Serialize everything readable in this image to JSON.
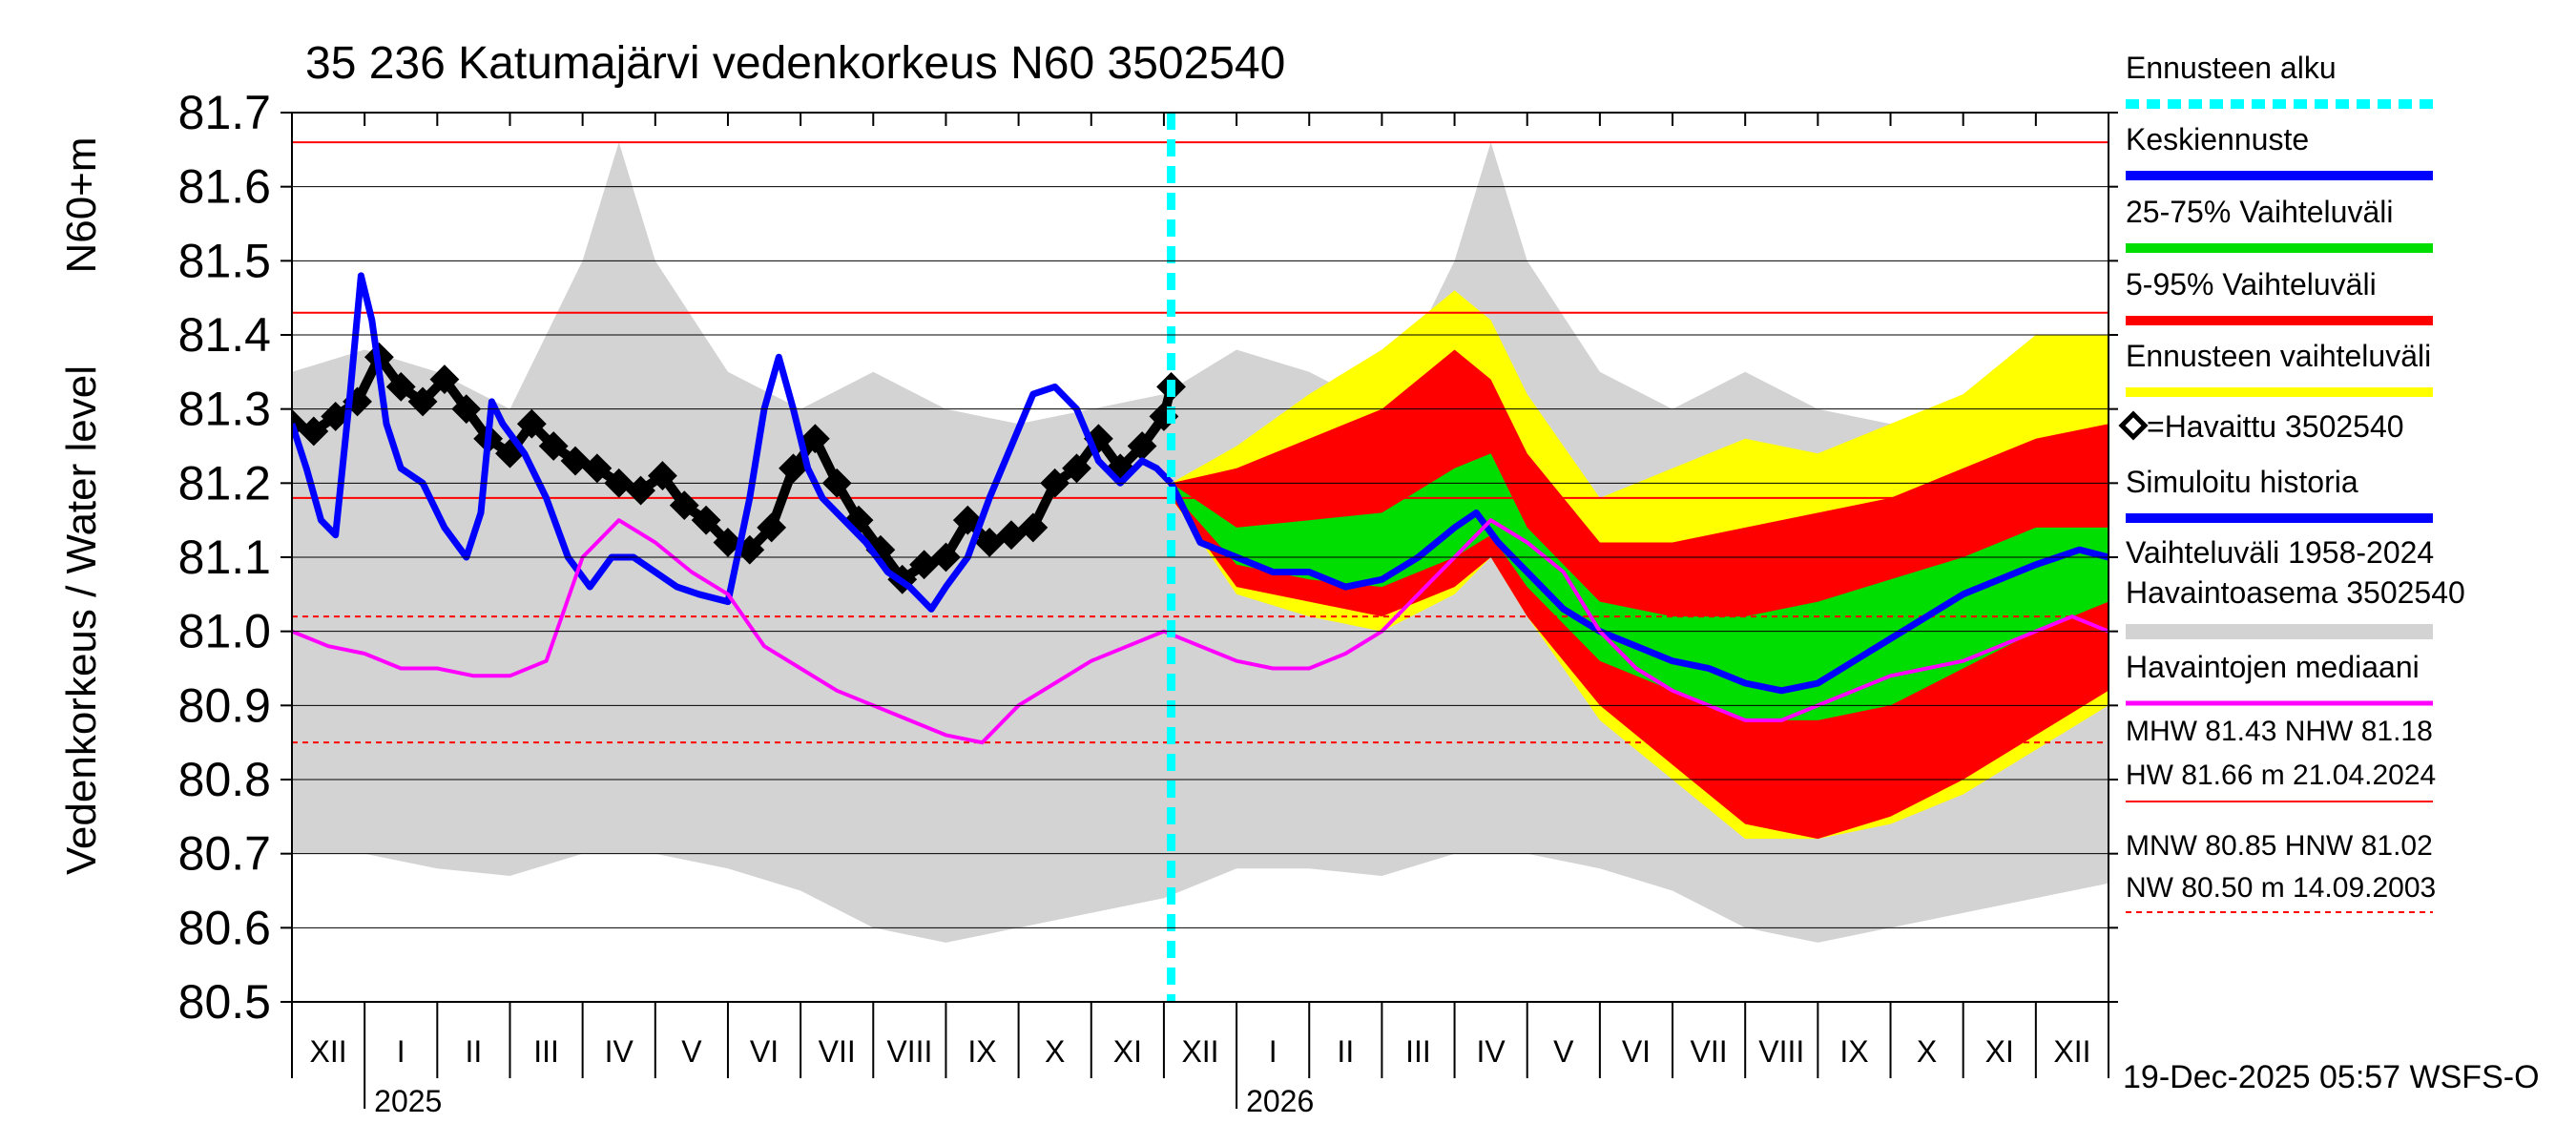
{
  "chart_data": {
    "type": "line",
    "title": "35 236 Katumajärvi vedenkorkeus N60 3502540",
    "ylabel_left": "Vedenkorkeus / Water level",
    "ylabel_right": "N60+m",
    "ylim": [
      80.5,
      81.7
    ],
    "yticks": [
      "81.7",
      "81.6",
      "81.5",
      "81.4",
      "81.3",
      "81.2",
      "81.1",
      "81.0",
      "80.9",
      "80.8",
      "80.7",
      "80.6",
      "80.5"
    ],
    "months": [
      "XII",
      "I",
      "II",
      "III",
      "IV",
      "V",
      "VI",
      "VII",
      "VIII",
      "IX",
      "X",
      "XI",
      "XII",
      "I",
      "II",
      "III",
      "IV",
      "V",
      "VI",
      "VII",
      "VIII",
      "IX",
      "X",
      "XI",
      "XII"
    ],
    "years": [
      "2025",
      "2026"
    ],
    "forecast_start_month_index": 12.1,
    "reference_lines": {
      "MHW": 81.43,
      "NHW": 81.18,
      "HW": 81.66,
      "MNW": 80.85,
      "HNW": 81.02,
      "NW": 80.5
    },
    "series": [
      {
        "name": "Havaittu 3502540",
        "color": "#000000",
        "x": [
          0,
          0.3,
          0.6,
          0.9,
          1.2,
          1.5,
          1.8,
          2.1,
          2.4,
          2.7,
          3,
          3.3,
          3.6,
          3.9,
          4.2,
          4.5,
          4.8,
          5.1,
          5.4,
          5.7,
          6,
          6.3,
          6.6,
          6.9,
          7.2,
          7.5,
          7.8,
          8.1,
          8.4,
          8.7,
          9,
          9.3,
          9.6,
          9.9,
          10.2,
          10.5,
          10.8,
          11.1,
          11.4,
          11.7,
          12,
          12.1
        ],
        "y": [
          81.28,
          81.27,
          81.29,
          81.31,
          81.37,
          81.33,
          81.31,
          81.34,
          81.3,
          81.26,
          81.24,
          81.28,
          81.25,
          81.23,
          81.22,
          81.2,
          81.19,
          81.21,
          81.17,
          81.15,
          81.12,
          81.11,
          81.14,
          81.22,
          81.26,
          81.2,
          81.15,
          81.11,
          81.07,
          81.09,
          81.1,
          81.15,
          81.12,
          81.13,
          81.14,
          81.2,
          81.22,
          81.26,
          81.22,
          81.25,
          81.29,
          81.33
        ]
      },
      {
        "name": "Simuloitu historia",
        "color": "#0000ff",
        "x": [
          0,
          0.2,
          0.4,
          0.6,
          0.8,
          0.95,
          1.1,
          1.3,
          1.5,
          1.8,
          2.1,
          2.4,
          2.6,
          2.75,
          2.9,
          3.2,
          3.5,
          3.8,
          4.1,
          4.4,
          4.7,
          5,
          5.3,
          5.6,
          6,
          6.3,
          6.5,
          6.7,
          6.9,
          7.1,
          7.3,
          7.6,
          7.9,
          8.2,
          8.5,
          8.8,
          9,
          9.3,
          9.6,
          9.9,
          10.2,
          10.5,
          10.8,
          11.1,
          11.4,
          11.7,
          11.9,
          12.1
        ],
        "y": [
          81.28,
          81.22,
          81.15,
          81.13,
          81.32,
          81.48,
          81.42,
          81.28,
          81.22,
          81.2,
          81.14,
          81.1,
          81.16,
          81.31,
          81.28,
          81.24,
          81.18,
          81.1,
          81.06,
          81.1,
          81.1,
          81.08,
          81.06,
          81.05,
          81.04,
          81.18,
          81.3,
          81.37,
          81.3,
          81.22,
          81.18,
          81.15,
          81.12,
          81.08,
          81.06,
          81.03,
          81.06,
          81.1,
          81.18,
          81.25,
          81.32,
          81.33,
          81.3,
          81.23,
          81.2,
          81.23,
          81.22,
          81.2
        ]
      },
      {
        "name": "Keskiennuste",
        "color": "#0000ff",
        "x": [
          12.1,
          12.5,
          13,
          13.5,
          14,
          14.5,
          15,
          15.5,
          16,
          16.3,
          16.6,
          17,
          17.5,
          18,
          18.5,
          19,
          19.5,
          20,
          20.5,
          21,
          21.5,
          22,
          22.5,
          23,
          23.5,
          24,
          24.3,
          24.6,
          25
        ],
        "y": [
          81.2,
          81.12,
          81.1,
          81.08,
          81.08,
          81.06,
          81.07,
          81.1,
          81.14,
          81.16,
          81.12,
          81.08,
          81.03,
          81.0,
          80.98,
          80.96,
          80.95,
          80.93,
          80.92,
          80.93,
          80.96,
          80.99,
          81.02,
          81.05,
          81.07,
          81.09,
          81.1,
          81.11,
          81.1
        ]
      },
      {
        "name": "Havaintojen mediaani",
        "color": "#ff00ff",
        "x": [
          0,
          0.5,
          1,
          1.5,
          2,
          2.5,
          3,
          3.5,
          4,
          4.5,
          5,
          5.5,
          6,
          6.5,
          7,
          7.5,
          8,
          8.5,
          9,
          9.5,
          10,
          10.5,
          11,
          11.5,
          12,
          12.5,
          13,
          13.5,
          14,
          14.5,
          15,
          15.5,
          16,
          16.5,
          17,
          17.5,
          18,
          18.5,
          19,
          19.5,
          20,
          20.5,
          21,
          21.5,
          22,
          22.5,
          23,
          23.5,
          24,
          24.5,
          25
        ],
        "y": [
          81.0,
          80.98,
          80.97,
          80.95,
          80.95,
          80.94,
          80.94,
          80.96,
          81.1,
          81.15,
          81.12,
          81.08,
          81.05,
          80.98,
          80.95,
          80.92,
          80.9,
          80.88,
          80.86,
          80.85,
          80.9,
          80.93,
          80.96,
          80.98,
          81.0,
          80.98,
          80.96,
          80.95,
          80.95,
          80.97,
          81.0,
          81.05,
          81.1,
          81.15,
          81.12,
          81.08,
          81.0,
          80.95,
          80.92,
          80.9,
          80.88,
          80.88,
          80.9,
          80.92,
          80.94,
          80.95,
          80.96,
          80.98,
          81.0,
          81.02,
          81.0
        ]
      }
    ],
    "bands": [
      {
        "name": "Vaihteluväli 1958-2024",
        "color": "#d3d3d3",
        "x": [
          0,
          1,
          2,
          3,
          4,
          4.5,
          5,
          6,
          7,
          8,
          9,
          10,
          11,
          12,
          13,
          14,
          15,
          16,
          16.5,
          17,
          18,
          19,
          20,
          21,
          22,
          23,
          24,
          25
        ],
        "low": [
          80.7,
          80.7,
          80.68,
          80.67,
          80.7,
          80.7,
          80.7,
          80.68,
          80.65,
          80.6,
          80.58,
          80.6,
          80.62,
          80.64,
          80.68,
          80.68,
          80.67,
          80.7,
          80.7,
          80.7,
          80.68,
          80.65,
          80.6,
          80.58,
          80.6,
          80.62,
          80.64,
          80.66
        ],
        "high": [
          81.35,
          81.38,
          81.35,
          81.3,
          81.5,
          81.66,
          81.5,
          81.35,
          81.3,
          81.35,
          81.3,
          81.28,
          81.3,
          81.32,
          81.38,
          81.35,
          81.3,
          81.5,
          81.66,
          81.5,
          81.35,
          81.3,
          81.35,
          81.3,
          81.28,
          81.3,
          81.32,
          81.35
        ]
      },
      {
        "name": "Ennusteen vaihteluväli",
        "color": "#ffff00",
        "x": [
          12.1,
          13,
          14,
          15,
          16,
          16.5,
          17,
          18,
          19,
          20,
          21,
          22,
          23,
          24,
          25
        ],
        "low": [
          81.18,
          81.05,
          81.02,
          81.0,
          81.05,
          81.1,
          81.02,
          80.88,
          80.8,
          80.72,
          80.72,
          80.74,
          80.78,
          80.84,
          80.9
        ],
        "high": [
          81.2,
          81.25,
          81.32,
          81.38,
          81.46,
          81.42,
          81.32,
          81.18,
          81.22,
          81.26,
          81.24,
          81.28,
          81.32,
          81.4,
          81.4
        ]
      },
      {
        "name": "5-95% Vaihteluväli",
        "color": "#ff0000",
        "x": [
          12.1,
          13,
          14,
          15,
          16,
          16.5,
          17,
          18,
          19,
          20,
          21,
          22,
          23,
          24,
          25
        ],
        "low": [
          81.18,
          81.06,
          81.04,
          81.02,
          81.06,
          81.1,
          81.02,
          80.9,
          80.82,
          80.74,
          80.72,
          80.75,
          80.8,
          80.86,
          80.92
        ],
        "high": [
          81.2,
          81.22,
          81.26,
          81.3,
          81.38,
          81.34,
          81.24,
          81.12,
          81.12,
          81.14,
          81.16,
          81.18,
          81.22,
          81.26,
          81.28
        ]
      },
      {
        "name": "25-75% Vaihteluväli",
        "color": "#00dd00",
        "x": [
          12.1,
          13,
          14,
          15,
          16,
          16.5,
          17,
          18,
          19,
          20,
          21,
          22,
          23,
          24,
          25
        ],
        "low": [
          81.19,
          81.09,
          81.07,
          81.06,
          81.1,
          81.13,
          81.06,
          80.96,
          80.92,
          80.88,
          80.88,
          80.9,
          80.95,
          81.0,
          81.04
        ],
        "high": [
          81.2,
          81.14,
          81.15,
          81.16,
          81.22,
          81.24,
          81.14,
          81.04,
          81.02,
          81.02,
          81.04,
          81.07,
          81.1,
          81.14,
          81.14
        ]
      }
    ],
    "legend": {
      "items": [
        {
          "label": "Ennusteen alku",
          "color": "#00ffff",
          "style": "dashed"
        },
        {
          "label": "Keskiennuste",
          "color": "#0000ff",
          "style": "solid"
        },
        {
          "label": "25-75% Vaihteluväli",
          "color": "#00dd00",
          "style": "solid"
        },
        {
          "label": "5-95% Vaihteluväli",
          "color": "#ff0000",
          "style": "solid"
        },
        {
          "label": "Ennusteen vaihteluväli",
          "color": "#ffff00",
          "style": "solid"
        },
        {
          "label": "=Havaittu 3502540",
          "color": "#000000",
          "style": "marker"
        },
        {
          "label": "Simuloitu historia",
          "color": "#0000ff",
          "style": "solid"
        },
        {
          "label": "Vaihteluväli 1958-2024",
          "color": "#d3d3d3",
          "style": "none"
        },
        {
          "label": "Havaintoasema 3502540",
          "color": "#d3d3d3",
          "style": "solid"
        },
        {
          "label": "Havaintojen mediaani",
          "color": "#ff00ff",
          "style": "solid"
        }
      ],
      "stats": {
        "line1": "MHW  81.43 NHW  81.18",
        "line2": "HW  81.66 m 21.04.2024",
        "line3": "MNW  80.85 HNW  81.02",
        "line4": "NW  80.50 m 14.09.2003"
      }
    },
    "footer": "19-Dec-2025 05:57 WSFS-O"
  }
}
